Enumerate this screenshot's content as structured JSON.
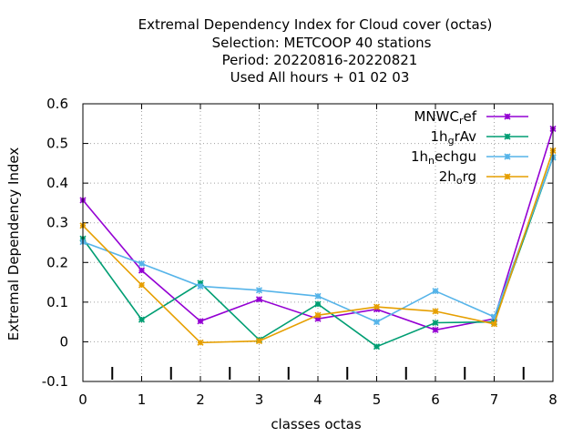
{
  "chart_data": {
    "type": "line",
    "title_lines": [
      "Extremal Dependency Index  for Cloud cover (octas)",
      "Selection: METCOOP     40 stations",
      "Period: 20220816-20220821",
      "Used  All hours + 01 02 03"
    ],
    "xlabel": "classes octas",
    "ylabel": "Extremal Dependency Index",
    "xlim": [
      0,
      8
    ],
    "ylim": [
      -0.1,
      0.6
    ],
    "x_ticks": [
      0,
      1,
      2,
      3,
      4,
      5,
      6,
      7,
      8
    ],
    "x_tick_labels": [
      "0",
      "1",
      "2",
      "3",
      "4",
      "5",
      "6",
      "7",
      "8"
    ],
    "y_ticks": [
      -0.1,
      0,
      0.1,
      0.2,
      0.3,
      0.4,
      0.5,
      0.6
    ],
    "y_tick_labels": [
      "-0.1",
      "0",
      "0.1",
      "0.2",
      "0.3",
      "0.4",
      "0.5",
      "0.6"
    ],
    "class_separators": [
      0.5,
      1.5,
      2.5,
      3.5,
      4.5,
      5.5,
      6.5,
      7.5
    ],
    "grid": true,
    "legend_position": "top-right",
    "x": [
      0,
      1,
      2,
      3,
      4,
      5,
      6,
      7,
      8
    ],
    "series": [
      {
        "name": "MNWC_ref",
        "legend_main": "MNWC",
        "legend_sub": "r",
        "legend_tail": "ef",
        "color": "#9400d3",
        "values": [
          0.357,
          0.18,
          0.052,
          0.107,
          0.058,
          0.082,
          0.03,
          0.058,
          0.537
        ]
      },
      {
        "name": "1h_grAv",
        "legend_main": "1h",
        "legend_sub": "g",
        "legend_tail": "rAv",
        "color": "#009e73",
        "values": [
          0.26,
          0.056,
          0.148,
          0.005,
          0.095,
          -0.012,
          0.048,
          0.05,
          0.465
        ]
      },
      {
        "name": "1h_nechgu",
        "legend_main": "1h",
        "legend_sub": "n",
        "legend_tail": "echgu",
        "color": "#56b4e9",
        "values": [
          0.252,
          0.197,
          0.14,
          0.13,
          0.115,
          0.05,
          0.128,
          0.063,
          0.465
        ]
      },
      {
        "name": "2h_org",
        "legend_main": "2h",
        "legend_sub": "o",
        "legend_tail": "rg",
        "color": "#e69f00",
        "values": [
          0.293,
          0.143,
          -0.002,
          0.002,
          0.067,
          0.088,
          0.077,
          0.045,
          0.482
        ]
      }
    ]
  }
}
